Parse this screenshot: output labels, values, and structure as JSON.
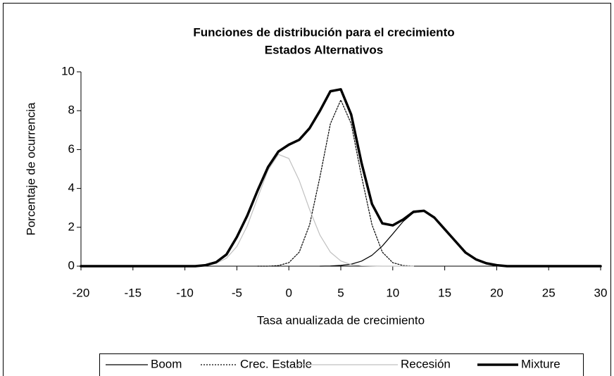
{
  "chart_data": {
    "type": "line",
    "title": "Funciones de distribución para el crecimiento",
    "subtitle": "Estados Alternativos",
    "x_label": "Tasa anualizada de crecimiento",
    "y_label": "Porcentaje de ocurrencia",
    "x": [
      -20,
      -19,
      -18,
      -17,
      -16,
      -15,
      -14,
      -13,
      -12,
      -11,
      -10,
      -9,
      -8,
      -7,
      -6,
      -5,
      -4,
      -3,
      -2,
      -1,
      0,
      1,
      2,
      3,
      4,
      5,
      6,
      7,
      8,
      9,
      10,
      11,
      12,
      13,
      14,
      15,
      16,
      17,
      18,
      19,
      20,
      21,
      22,
      23,
      24,
      25,
      26,
      27,
      28,
      29,
      30
    ],
    "series": [
      {
        "name": "Boom",
        "color": "#000000",
        "line_style": "solid",
        "values": [
          null,
          null,
          null,
          null,
          null,
          null,
          null,
          null,
          null,
          null,
          null,
          null,
          null,
          null,
          null,
          null,
          null,
          null,
          null,
          null,
          null,
          null,
          null,
          0,
          0.01,
          0.04,
          0.1,
          0.26,
          0.56,
          1.04,
          1.66,
          2.3,
          2.75,
          2.83,
          2.51,
          1.93,
          1.27,
          0.72,
          0.36,
          0.15,
          0.06,
          0.02,
          0,
          null,
          null,
          null,
          null,
          null,
          null,
          null,
          null
        ]
      },
      {
        "name": "Crec. Estable",
        "color": "#000000",
        "line_style": "dotted",
        "values": [
          null,
          null,
          null,
          null,
          null,
          null,
          null,
          null,
          null,
          null,
          null,
          null,
          null,
          null,
          null,
          null,
          null,
          0,
          0,
          0.03,
          0.18,
          0.72,
          2.13,
          4.61,
          7.33,
          8.55,
          7.33,
          4.61,
          2.13,
          0.72,
          0.18,
          0.03,
          0,
          null,
          null,
          null,
          null,
          null,
          null,
          null,
          null,
          null,
          null,
          null,
          null,
          null,
          null,
          null,
          null,
          null,
          null
        ]
      },
      {
        "name": "Recesión",
        "color": "#c0c0c0",
        "line_style": "solid",
        "values": [
          null,
          null,
          null,
          null,
          null,
          null,
          null,
          null,
          null,
          null,
          null,
          0.01,
          0.04,
          0.14,
          0.41,
          1.01,
          2.07,
          3.52,
          4.94,
          5.75,
          5.54,
          4.41,
          2.91,
          1.59,
          0.72,
          0.27,
          0.08,
          0.02,
          0.01,
          0,
          0,
          0,
          0,
          null,
          null,
          null,
          null,
          null,
          null,
          null,
          null,
          null,
          null,
          null,
          null,
          null,
          null,
          null,
          null,
          null,
          null
        ]
      },
      {
        "name": "Mixture",
        "color": "#000000",
        "line_style": "bold",
        "values": [
          0,
          0,
          0,
          0,
          0,
          0,
          0,
          0,
          0,
          0,
          0,
          0,
          0.05,
          0.2,
          0.6,
          1.5,
          2.6,
          3.9,
          5.1,
          5.9,
          6.25,
          6.5,
          7.1,
          8.0,
          9.0,
          9.1,
          7.8,
          5.3,
          3.2,
          2.2,
          2.1,
          2.4,
          2.8,
          2.85,
          2.5,
          1.9,
          1.3,
          0.7,
          0.35,
          0.15,
          0.05,
          0,
          0,
          0,
          0,
          0,
          0,
          0,
          0,
          0,
          0
        ]
      }
    ],
    "xlim": [
      -20,
      30
    ],
    "xticks": [
      -20,
      -15,
      -10,
      -5,
      0,
      5,
      10,
      15,
      20,
      25,
      30
    ],
    "ylim": [
      0,
      10
    ],
    "yticks": [
      0,
      2,
      4,
      6,
      8,
      10
    ],
    "grid": false,
    "legend": "bottom"
  }
}
